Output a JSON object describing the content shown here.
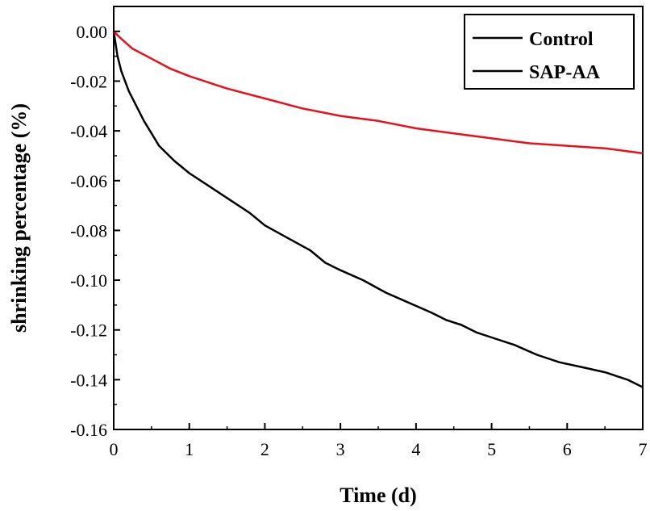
{
  "chart_data": {
    "type": "line",
    "title": "",
    "xlabel": "Time (d)",
    "ylabel": "shrinking percentage (%)",
    "xlim": [
      0,
      7
    ],
    "ylim": [
      -0.16,
      0.01
    ],
    "xticks": [
      0,
      1,
      2,
      3,
      4,
      5,
      6,
      7
    ],
    "xtick_labels": [
      "0",
      "1",
      "2",
      "3",
      "4",
      "5",
      "6",
      "7"
    ],
    "yticks": [
      0.0,
      -0.02,
      -0.04,
      -0.06,
      -0.08,
      -0.1,
      -0.12,
      -0.14,
      -0.16
    ],
    "ytick_labels": [
      "0.00",
      "-0.02",
      "-0.04",
      "-0.06",
      "-0.08",
      "-0.10",
      "-0.12",
      "-0.14",
      "-0.16"
    ],
    "grid": false,
    "legend_position": "top-right",
    "series": [
      {
        "name": "Control",
        "color": "#000000",
        "x": [
          0,
          0.05,
          0.1,
          0.2,
          0.3,
          0.4,
          0.5,
          0.6,
          0.8,
          1.0,
          1.2,
          1.5,
          1.8,
          2.0,
          2.3,
          2.6,
          2.8,
          3.0,
          3.3,
          3.6,
          3.9,
          4.2,
          4.4,
          4.6,
          4.8,
          5.0,
          5.3,
          5.6,
          5.9,
          6.2,
          6.5,
          6.8,
          7.0
        ],
        "y": [
          0.0,
          -0.01,
          -0.016,
          -0.024,
          -0.03,
          -0.036,
          -0.041,
          -0.046,
          -0.052,
          -0.057,
          -0.061,
          -0.067,
          -0.073,
          -0.078,
          -0.083,
          -0.088,
          -0.093,
          -0.096,
          -0.1,
          -0.105,
          -0.109,
          -0.113,
          -0.116,
          -0.118,
          -0.121,
          -0.123,
          -0.126,
          -0.13,
          -0.133,
          -0.135,
          -0.137,
          -0.14,
          -0.143
        ]
      },
      {
        "name": "SAP-AA",
        "color": "#e8101c",
        "x": [
          0,
          0.1,
          0.25,
          0.5,
          0.75,
          1.0,
          1.5,
          2.0,
          2.5,
          3.0,
          3.5,
          4.0,
          4.5,
          5.0,
          5.5,
          6.0,
          6.5,
          7.0
        ],
        "y": [
          0.0,
          -0.003,
          -0.007,
          -0.011,
          -0.015,
          -0.018,
          -0.023,
          -0.027,
          -0.031,
          -0.034,
          -0.036,
          -0.039,
          -0.041,
          -0.043,
          -0.045,
          -0.046,
          -0.047,
          -0.049
        ]
      }
    ]
  }
}
